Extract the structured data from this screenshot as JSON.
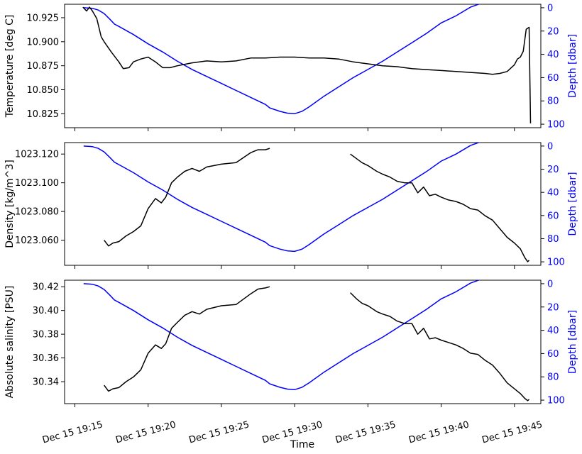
{
  "chart_data": {
    "type": "line",
    "xlabel": "Time",
    "x_ticks": [
      "Dec 15 19:15",
      "Dec 15 19:20",
      "Dec 15 19:25",
      "Dec 15 19:30",
      "Dec 15 19:35",
      "Dec 15 19:40",
      "Dec 15 19:45"
    ],
    "x_tick_minutes": [
      15,
      20,
      25,
      30,
      35,
      40,
      45
    ],
    "xlim": [
      14.3,
      46.8
    ],
    "colors": {
      "primary": "#000000",
      "depth": "#0000ff"
    },
    "depth_axis": {
      "label": "Depth [dbar]",
      "inverted": true,
      "ticks": [
        0,
        20,
        40,
        60,
        80,
        100
      ],
      "ylim": [
        103,
        -3
      ],
      "series": {
        "x": [
          15.6,
          16.2,
          16.6,
          17.0,
          17.4,
          17.7,
          18.0,
          19.0,
          20.0,
          21.0,
          22.0,
          23.0,
          24.0,
          25.0,
          26.0,
          27.0,
          28.0,
          28.3,
          29.0,
          29.5,
          30.0,
          30.5,
          31.0,
          32.0,
          33.0,
          34.0,
          35.0,
          36.0,
          37.0,
          38.0,
          39.0,
          40.0,
          41.0,
          42.0,
          43.0,
          44.0,
          45.0,
          45.8,
          46.3
        ],
        "y": [
          0,
          0.5,
          2,
          5,
          10,
          14,
          16,
          23,
          31,
          38,
          46,
          53,
          59,
          65,
          71,
          77,
          83,
          86,
          89,
          90.5,
          91,
          89,
          85,
          76,
          68,
          60,
          53,
          46,
          38,
          30,
          22,
          13,
          7,
          -0.5,
          -5,
          -10,
          -15,
          -17,
          -18
        ]
      }
    },
    "panels": [
      {
        "ylabel": "Temperature [deg C]",
        "ylim": [
          10.8105,
          10.939
        ],
        "y_ticks": [
          10.825,
          10.85,
          10.875,
          10.9,
          10.925
        ],
        "y_tick_labels": [
          "10.825",
          "10.850",
          "10.875",
          "10.900",
          "10.925"
        ],
        "depth_ylim": [
          103,
          -3
        ],
        "series": {
          "name": "",
          "x": [
            15.55,
            15.8,
            16.0,
            16.2,
            16.5,
            16.8,
            17.0,
            17.5,
            18.0,
            18.3,
            18.7,
            19.0,
            19.5,
            20.0,
            20.5,
            21.0,
            21.5,
            22.0,
            23.0,
            24.0,
            25.0,
            26.0,
            27.0,
            28.0,
            29.0,
            30.0,
            31.0,
            32.0,
            33.0,
            34.0,
            35.0,
            36.0,
            37.0,
            38.0,
            39.0,
            40.0,
            41.0,
            42.0,
            43.0,
            43.5,
            44.0,
            44.5,
            45.0,
            45.2,
            45.4,
            45.6,
            45.8,
            46.0,
            46.1
          ],
          "y": [
            10.936,
            10.932,
            10.936,
            10.932,
            10.924,
            10.905,
            10.9,
            10.889,
            10.879,
            10.872,
            10.873,
            10.879,
            10.882,
            10.884,
            10.879,
            10.873,
            10.873,
            10.875,
            10.878,
            10.88,
            10.879,
            10.88,
            10.883,
            10.883,
            10.884,
            10.884,
            10.883,
            10.883,
            10.882,
            10.879,
            10.877,
            10.875,
            10.874,
            10.872,
            10.871,
            10.87,
            10.869,
            10.868,
            10.867,
            10.866,
            10.867,
            10.869,
            10.876,
            10.882,
            10.884,
            10.89,
            10.913,
            10.915,
            10.815
          ]
        }
      },
      {
        "ylabel": "Density [kg/m^3]",
        "ylim": [
          1023.0425,
          1023.128
        ],
        "y_ticks": [
          1023.06,
          1023.08,
          1023.1,
          1023.12
        ],
        "y_tick_labels": [
          "1023.060",
          "1023.080",
          "1023.100",
          "1023.120"
        ],
        "depth_ylim": [
          103,
          -3
        ],
        "gap": [
          28.3,
          33.8
        ],
        "series": {
          "name": "",
          "x": [
            17.0,
            17.3,
            17.6,
            18.0,
            18.5,
            19.0,
            19.5,
            20.0,
            20.5,
            20.9,
            21.2,
            21.6,
            22.0,
            22.5,
            23.0,
            23.5,
            24.0,
            25.0,
            26.0,
            27.0,
            27.5,
            28.0,
            28.3,
            33.8,
            34.2,
            34.6,
            35.0,
            35.6,
            36.0,
            36.5,
            37.0,
            37.5,
            38.0,
            38.4,
            38.8,
            39.2,
            39.6,
            40.0,
            40.5,
            41.0,
            41.5,
            42.0,
            42.5,
            43.0,
            43.5,
            44.0,
            44.5,
            45.0,
            45.4,
            45.7,
            45.9,
            46.0
          ],
          "y": [
            1023.06,
            1023.056,
            1023.058,
            1023.059,
            1023.063,
            1023.066,
            1023.07,
            1023.082,
            1023.089,
            1023.086,
            1023.09,
            1023.1,
            1023.104,
            1023.108,
            1023.11,
            1023.108,
            1023.111,
            1023.113,
            1023.114,
            1023.121,
            1023.123,
            1023.123,
            1023.124,
            1023.12,
            1023.117,
            1023.114,
            1023.112,
            1023.108,
            1023.106,
            1023.104,
            1023.101,
            1023.1,
            1023.1,
            1023.093,
            1023.097,
            1023.091,
            1023.092,
            1023.09,
            1023.088,
            1023.087,
            1023.085,
            1023.082,
            1023.081,
            1023.077,
            1023.074,
            1023.068,
            1023.062,
            1023.058,
            1023.054,
            1023.048,
            1023.045,
            1023.046
          ]
        }
      },
      {
        "ylabel": "Absolute salinity [PSU]",
        "ylim": [
          30.3215,
          30.4255
        ],
        "y_ticks": [
          30.34,
          30.36,
          30.38,
          30.4,
          30.42
        ],
        "y_tick_labels": [
          "30.34",
          "30.36",
          "30.38",
          "30.40",
          "30.42"
        ],
        "depth_ylim": [
          103,
          -3
        ],
        "gap": [
          28.3,
          33.8
        ],
        "series": {
          "name": "",
          "x": [
            17.0,
            17.3,
            17.6,
            18.0,
            18.5,
            19.0,
            19.5,
            20.0,
            20.5,
            20.9,
            21.2,
            21.6,
            22.0,
            22.5,
            23.0,
            23.5,
            24.0,
            25.0,
            26.0,
            27.0,
            27.5,
            28.0,
            28.3,
            33.8,
            34.2,
            34.6,
            35.0,
            35.6,
            36.0,
            36.5,
            37.0,
            37.5,
            38.0,
            38.4,
            38.8,
            39.2,
            39.6,
            40.0,
            40.5,
            41.0,
            41.5,
            42.0,
            42.5,
            43.0,
            43.5,
            44.0,
            44.5,
            45.0,
            45.4,
            45.7,
            45.9,
            46.0
          ],
          "y": [
            30.337,
            30.332,
            30.334,
            30.335,
            30.34,
            30.344,
            30.35,
            30.364,
            30.371,
            30.368,
            30.372,
            30.385,
            30.39,
            30.396,
            30.399,
            30.397,
            30.401,
            30.404,
            30.405,
            30.414,
            30.418,
            30.419,
            30.42,
            30.415,
            30.41,
            30.406,
            30.404,
            30.399,
            30.397,
            30.395,
            30.391,
            30.389,
            30.389,
            30.38,
            30.385,
            30.376,
            30.377,
            30.375,
            30.373,
            30.371,
            30.368,
            30.364,
            30.363,
            30.358,
            30.354,
            30.347,
            30.339,
            30.334,
            30.33,
            30.326,
            30.324,
            30.325
          ]
        }
      }
    ]
  }
}
